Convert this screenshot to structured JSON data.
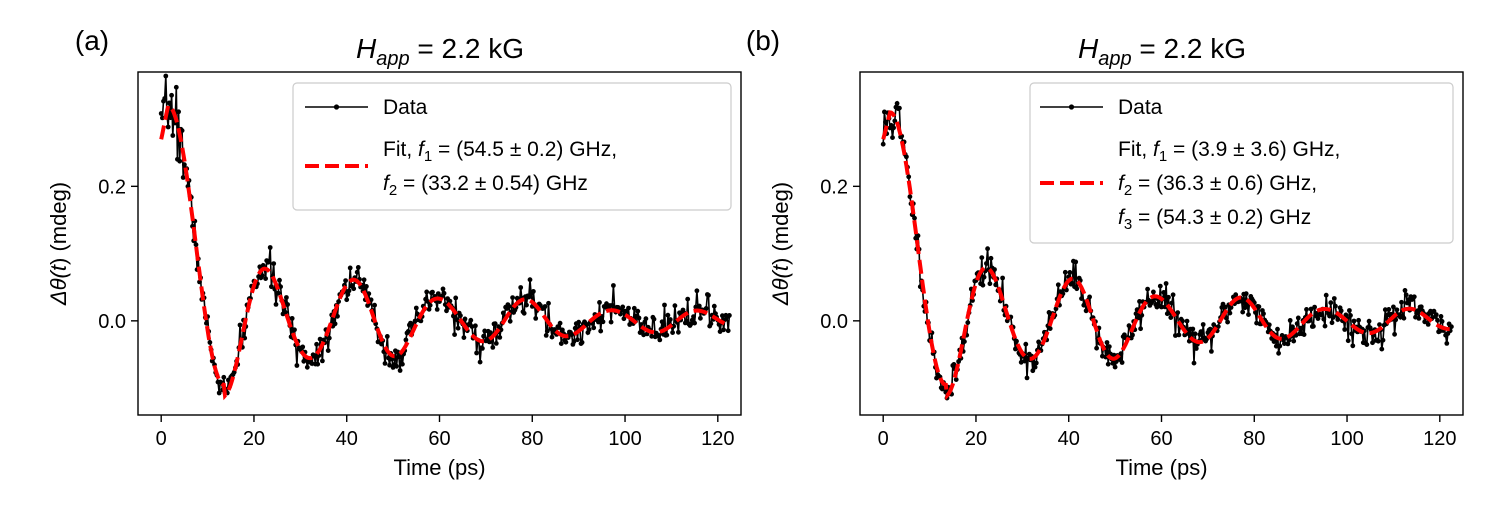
{
  "chart_data": [
    {
      "type": "line",
      "panel_label": "(a)",
      "title_var": "H",
      "title_sub": "app",
      "title_rest": " = 2.2 kG",
      "xlabel": "Time (ps)",
      "ylabel_prefix": "Δθ(",
      "ylabel_var": "t",
      "ylabel_suffix": ") (mdeg)",
      "xlim": [
        -5,
        125
      ],
      "ylim": [
        -0.14,
        0.37
      ],
      "xticks": [
        0,
        20,
        40,
        60,
        80,
        100,
        120
      ],
      "xtick_labels": [
        "0",
        "20",
        "40",
        "60",
        "80",
        "100",
        "120"
      ],
      "yticks": [
        0.0,
        0.2
      ],
      "ytick_labels": [
        "0.0",
        "0.2"
      ],
      "legend_position": "top-right",
      "legend": [
        {
          "name": "Data",
          "lines": [
            {
              "text": "Data"
            }
          ]
        },
        {
          "name": "Fit",
          "lines": [
            {
              "pre": "Fit, ",
              "var": "f",
              "sub": "1",
              "post": " = (54.5 ± 0.2) GHz,"
            },
            {
              "pre": "",
              "var": "f",
              "sub": "2",
              "post": " = (33.2 ± 0.54) GHz"
            }
          ]
        }
      ],
      "series": [
        {
          "name": "Data",
          "color": "#000000",
          "style": "solid-markers"
        },
        {
          "name": "Fit",
          "color": "#ff0000",
          "style": "dashed",
          "model": {
            "peak": 0.32,
            "peak_t": 1.5,
            "min": -0.095,
            "min_t": 13.5,
            "period": 18.6,
            "decay": 52,
            "offset": 0.0
          }
        }
      ],
      "data_points": {
        "t_start": 0,
        "t_end": 122.5,
        "step": 0.25,
        "noise": 0.012,
        "seed": 7
      }
    },
    {
      "type": "line",
      "panel_label": "(b)",
      "title_var": "H",
      "title_sub": "app",
      "title_rest": " = 2.2 kG",
      "xlabel": "Time (ps)",
      "ylabel_prefix": "Δθ(",
      "ylabel_var": "t",
      "ylabel_suffix": ") (mdeg)",
      "xlim": [
        -5,
        125
      ],
      "ylim": [
        -0.14,
        0.37
      ],
      "xticks": [
        0,
        20,
        40,
        60,
        80,
        100,
        120
      ],
      "xtick_labels": [
        "0",
        "20",
        "40",
        "60",
        "80",
        "100",
        "120"
      ],
      "yticks": [
        0.0,
        0.2
      ],
      "ytick_labels": [
        "0.0",
        "0.2"
      ],
      "legend_position": "top-right",
      "legend": [
        {
          "name": "Data",
          "lines": [
            {
              "text": "Data"
            }
          ]
        },
        {
          "name": "Fit",
          "lines": [
            {
              "pre": "Fit, ",
              "var": "f",
              "sub": "1",
              "post": " = (3.9 ± 3.6) GHz,"
            },
            {
              "pre": "",
              "var": "f",
              "sub": "2",
              "post": " = (36.3 ± 0.6) GHz,"
            },
            {
              "pre": "",
              "var": "f",
              "sub": "3",
              "post": " = (54.3 ± 0.2) GHz"
            }
          ]
        }
      ],
      "series": [
        {
          "name": "Data",
          "color": "#000000",
          "style": "solid-markers"
        },
        {
          "name": "Fit",
          "color": "#ff0000",
          "style": "dashed",
          "model": {
            "peak": 0.31,
            "peak_t": 1.5,
            "min": -0.095,
            "min_t": 13.5,
            "period": 18.2,
            "decay": 55,
            "offset": 0.0
          }
        }
      ],
      "data_points": {
        "t_start": 0,
        "t_end": 122.5,
        "step": 0.25,
        "noise": 0.012,
        "seed": 11
      }
    }
  ]
}
